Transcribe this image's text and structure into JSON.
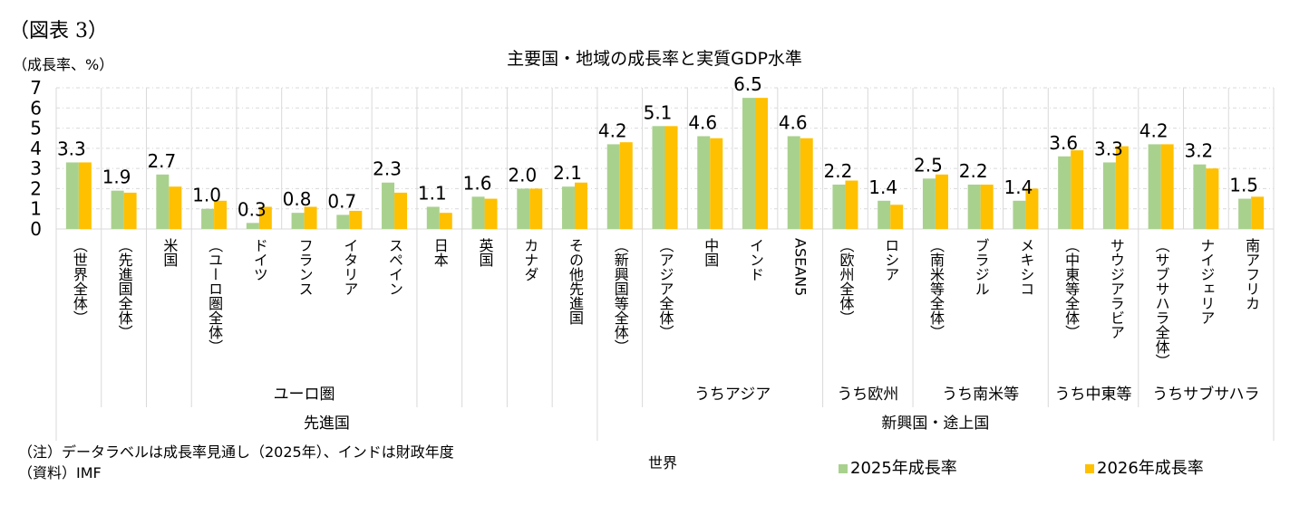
{
  "figure_label": "（図表 3）",
  "note": "（注）データラベルは成長率見通し（2025年）、インドは財政年度",
  "source": "（資料）IMF",
  "world_label": "世界",
  "colors": {
    "y2025": "#a9d18e",
    "y2026": "#ffc000"
  },
  "chart_data": {
    "type": "bar",
    "title": "主要国・地域の成長率と実質GDP水準",
    "ylabel": "（成長率、%）",
    "ylim": [
      0,
      7
    ],
    "yticks": [
      "0",
      "1",
      "2",
      "3",
      "4",
      "5",
      "6",
      "7"
    ],
    "grid": true,
    "legend_position": "bottom",
    "categories": [
      "（世界全体）",
      "（先進国全体）",
      "米国",
      "（ユーロ圏全体）",
      "ドイツ",
      "フランス",
      "イタリア",
      "スペイン",
      "日本",
      "英国",
      "カナダ",
      "その他先進国",
      "（新興国等全体）",
      "（アジア全体）",
      "中国",
      "インド",
      "ASEAN5",
      "（欧州全体）",
      "ロシア",
      "（南米等全体）",
      "ブラジル",
      "メキシコ",
      "（中東等全体）",
      "サウジアラビア",
      "（サブサハラ全体）",
      "ナイジェリア",
      "南アフリカ"
    ],
    "groups_level2": [
      {
        "label": "ユーロ圏",
        "start": 3,
        "end": 7
      },
      {
        "label": "うちアジア",
        "start": 13,
        "end": 16
      },
      {
        "label": "うち欧州",
        "start": 17,
        "end": 18
      },
      {
        "label": "うち南米等",
        "start": 19,
        "end": 21
      },
      {
        "label": "うち中東等",
        "start": 22,
        "end": 23
      },
      {
        "label": "うちサブサハラ",
        "start": 24,
        "end": 26
      }
    ],
    "groups_level3": [
      {
        "label": "先進国",
        "start": 0,
        "end": 11
      },
      {
        "label": "新興国・途上国",
        "start": 12,
        "end": 26
      }
    ],
    "series": [
      {
        "name": "2025年成長率",
        "values": [
          3.3,
          1.9,
          2.7,
          1.0,
          0.3,
          0.8,
          0.7,
          2.3,
          1.1,
          1.6,
          2.0,
          2.1,
          4.2,
          5.1,
          4.6,
          6.5,
          4.6,
          2.2,
          1.4,
          2.5,
          2.2,
          1.4,
          3.6,
          3.3,
          4.2,
          3.2,
          1.5
        ]
      },
      {
        "name": "2026年成長率",
        "values": [
          3.3,
          1.8,
          2.1,
          1.4,
          1.1,
          1.1,
          0.9,
          1.8,
          0.8,
          1.5,
          2.0,
          2.3,
          4.3,
          5.1,
          4.5,
          6.5,
          4.5,
          2.4,
          1.2,
          2.7,
          2.2,
          2.0,
          3.9,
          4.1,
          4.2,
          3.0,
          1.6
        ]
      }
    ],
    "data_labels": [
      "3.3",
      "1.9",
      "2.7",
      "1.0",
      "0.3",
      "0.8",
      "0.7",
      "2.3",
      "1.1",
      "1.6",
      "2.0",
      "2.1",
      "4.2",
      "5.1",
      "4.6",
      "6.5",
      "4.6",
      "2.2",
      "1.4",
      "2.5",
      "2.2",
      "1.4",
      "3.6",
      "3.3",
      "4.2",
      "3.2",
      "1.5"
    ]
  }
}
